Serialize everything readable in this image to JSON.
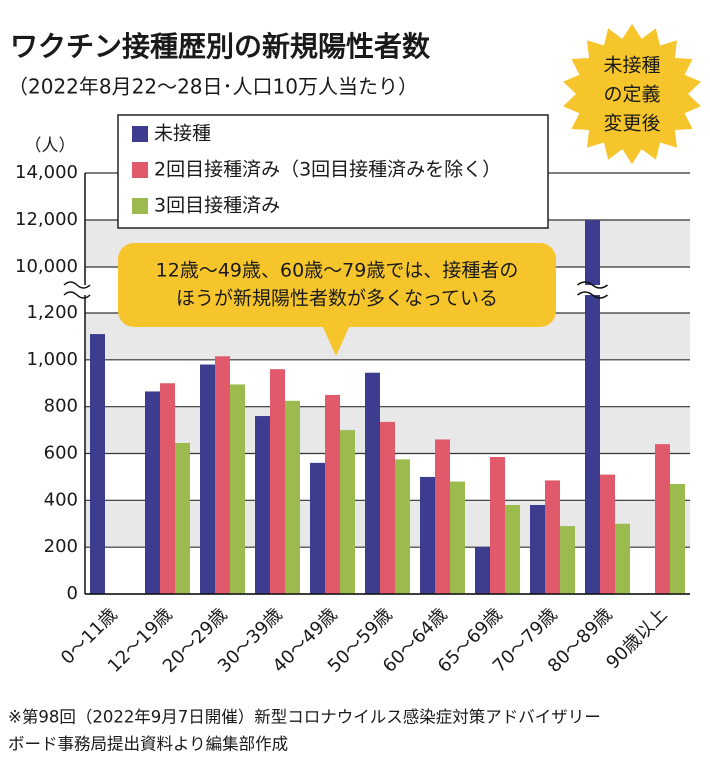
{
  "chart_data": {
    "type": "bar",
    "title": "ワクチン接種歴別の新規陽性者数",
    "subtitle": "（2022年8月22～28日･人口10万人当たり）",
    "y_label": "（人）",
    "badge": [
      "未接種",
      "の定義",
      "変更後"
    ],
    "annotation": [
      "12歳～49歳、60歳～79歳では、接種者の",
      "ほうが新規陽性者数が多くなっている"
    ],
    "footnote": [
      "※第98回（2022年9月7日開催）新型コロナウイルス感染症対策アドバイザリー",
      "ボード事務局提出資料より編集部作成"
    ],
    "categories": [
      "0～11歳",
      "12～19歳",
      "20～29歳",
      "30～39歳",
      "40～49歳",
      "50～59歳",
      "60～64歳",
      "65～69歳",
      "70～79歳",
      "80～89歳",
      "90歳以上"
    ],
    "series": [
      {
        "name": "未接種",
        "color": "#3c3d8f",
        "values": [
          1110,
          865,
          980,
          760,
          560,
          945,
          500,
          200,
          380,
          12000,
          null
        ]
      },
      {
        "name": "2回目接種済み（3回目接種済みを除く）",
        "color": "#e05a6b",
        "values": [
          null,
          900,
          1015,
          960,
          850,
          735,
          660,
          585,
          485,
          510,
          640
        ]
      },
      {
        "name": "3回目接種済み",
        "color": "#9bbb4f",
        "values": [
          null,
          645,
          895,
          825,
          700,
          575,
          480,
          380,
          290,
          300,
          470
        ]
      }
    ],
    "ylim": [
      0,
      14000
    ],
    "y_break": [
      1200,
      10000
    ],
    "yticks": [
      0,
      200,
      400,
      600,
      800,
      {
        "value": 1000,
        "label": "1,000"
      },
      {
        "value": 1200,
        "label": "1,200"
      },
      {
        "value": 10000,
        "label": "10,000"
      },
      {
        "value": 12000,
        "label": "12,000"
      },
      {
        "value": 14000,
        "label": "14,000"
      }
    ],
    "grid": true
  }
}
